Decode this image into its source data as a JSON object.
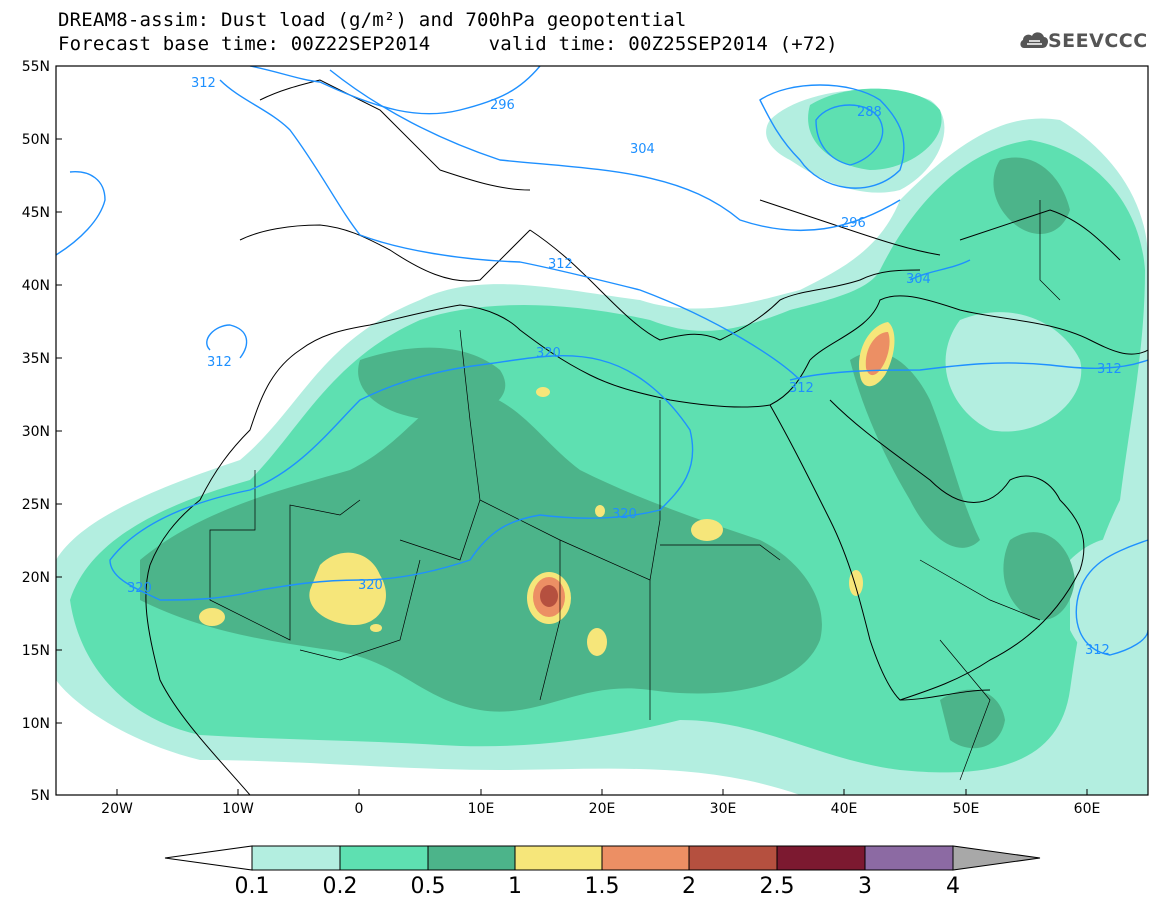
{
  "header": {
    "title_line1": "DREAM8-assim: Dust load (g/m²) and 700hPa geopotential",
    "title_line2": "Forecast base time: 00Z22SEP2014     valid time: 00Z25SEP2014 (+72)",
    "logo_text": "SEEVCCC"
  },
  "map": {
    "lat_labels": [
      "55N",
      "50N",
      "45N",
      "40N",
      "35N",
      "30N",
      "25N",
      "20N",
      "15N",
      "10N",
      "5N"
    ],
    "lon_labels": [
      "20W",
      "10W",
      "0",
      "10E",
      "20E",
      "30E",
      "40E",
      "50E",
      "60E"
    ],
    "lon_range": [
      -25,
      65
    ],
    "lat_range": [
      5,
      55
    ],
    "isoline_color": "#1e90ff",
    "isoline_labels": [
      "312",
      "296",
      "304",
      "288",
      "296",
      "320",
      "312",
      "304",
      "320",
      "312",
      "320",
      "320",
      "312",
      "312",
      "312"
    ]
  },
  "colorbar": {
    "labels": [
      "0.1",
      "0.2",
      "0.5",
      "1",
      "1.5",
      "2",
      "2.5",
      "3",
      "4"
    ],
    "colors": [
      "#ffffff",
      "#b3eee0",
      "#5ee0b1",
      "#4cb48a",
      "#f6e67a",
      "#ec8f64",
      "#b5503f",
      "#7c1930",
      "#8c6aa3",
      "#a8a8a8"
    ]
  }
}
